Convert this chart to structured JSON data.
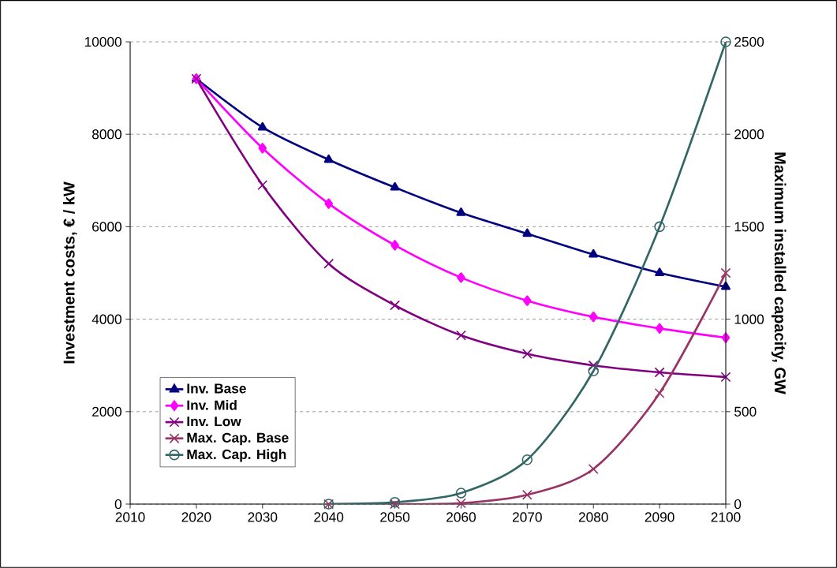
{
  "chart_data": {
    "type": "line",
    "xlabel": null,
    "ylabel": "Investment costs, € / kW",
    "y2label": "Maximum installed capacity, GW",
    "x": [
      2020,
      2030,
      2040,
      2050,
      2060,
      2070,
      2080,
      2090,
      2100
    ],
    "series": [
      {
        "name": "Inv. Base",
        "color": "#000080",
        "marker": "triangle",
        "values": [
          9200,
          8150,
          7450,
          6850,
          6300,
          5850,
          5400,
          5000,
          4700
        ]
      },
      {
        "name": "Inv. Mid",
        "color": "#ff00ff",
        "marker": "diamond",
        "values": [
          9200,
          7700,
          6500,
          5600,
          4900,
          4400,
          4050,
          3800,
          3600
        ]
      },
      {
        "name": "Inv. Low",
        "color": "#800080",
        "marker": "cross",
        "values": [
          9200,
          6900,
          5200,
          4300,
          3650,
          3250,
          3000,
          2850,
          2750
        ]
      },
      {
        "name": "Max. Cap. Base",
        "color": "#993366",
        "marker": "cross",
        "axis": "y2",
        "values": [
          null,
          null,
          0,
          0,
          5,
          50,
          190,
          600,
          1250
        ]
      },
      {
        "name": "Max. Cap. High",
        "color": "#336666",
        "marker": "circle",
        "axis": "y2",
        "values": [
          null,
          null,
          0,
          10,
          60,
          240,
          720,
          1500,
          2500
        ]
      }
    ],
    "xlim": [
      2010,
      2100
    ],
    "xticks": [
      2010,
      2020,
      2030,
      2040,
      2050,
      2060,
      2070,
      2080,
      2090,
      2100
    ],
    "ylim": [
      0,
      10000
    ],
    "yticks": [
      0,
      2000,
      4000,
      6000,
      8000,
      10000
    ],
    "y2lim": [
      0,
      2500
    ],
    "y2ticks": [
      0,
      500,
      1000,
      1500,
      2000,
      2500
    ],
    "grid": "y",
    "legend": "bottom left"
  }
}
